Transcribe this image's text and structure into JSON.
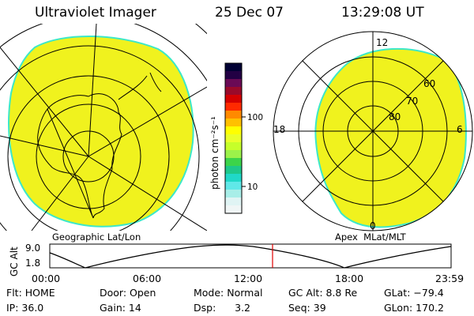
{
  "header": {
    "title": "Ultraviolet Imager",
    "date": "25 Dec 07",
    "time": "13:29:08 UT"
  },
  "colorbar": {
    "unit_label": "photon cm⁻²s⁻¹",
    "ticks": [
      "100",
      "10"
    ],
    "colors": [
      "#000033",
      "#220044",
      "#6a0a55",
      "#9a0a2a",
      "#d40000",
      "#ff2a00",
      "#ff8a00",
      "#ffc000",
      "#ffff00",
      "#eaff2a",
      "#c6ff2a",
      "#9cf24a",
      "#3cd44a",
      "#1ec88a",
      "#20d8c8",
      "#60e8e8",
      "#a8eee8",
      "#e0f4f4",
      "#f0f6f6"
    ]
  },
  "geo_panel": {
    "label": "Geographic Lat/Lon",
    "fill_color": "#f0f21e",
    "edge_color": "#3ce8c8"
  },
  "apex_panel": {
    "label": "Apex  MLat/MLT",
    "mlt_labels": [
      "12",
      "18",
      "6",
      "0"
    ],
    "lat_labels": [
      "60",
      "70",
      "80"
    ]
  },
  "alt_strip": {
    "ylabel": "GC Alt",
    "yticks": [
      "9.0",
      "1.8"
    ],
    "time_ticks": [
      "00:00",
      "06:00",
      "12:00",
      "18:00",
      "23:59"
    ],
    "cursor_time": "13:29",
    "cursor_color": "#e00000"
  },
  "footer": {
    "row1": [
      "Flt: HOME",
      "Door: Open",
      "Mode: Normal",
      "GC Alt: 8.8 Re",
      "GLat: −79.4"
    ],
    "row2": [
      "IP: 36.0",
      "Gain: 14",
      "Dsp:      3.2",
      "Seq: 39",
      "GLon: 170.2"
    ]
  }
}
